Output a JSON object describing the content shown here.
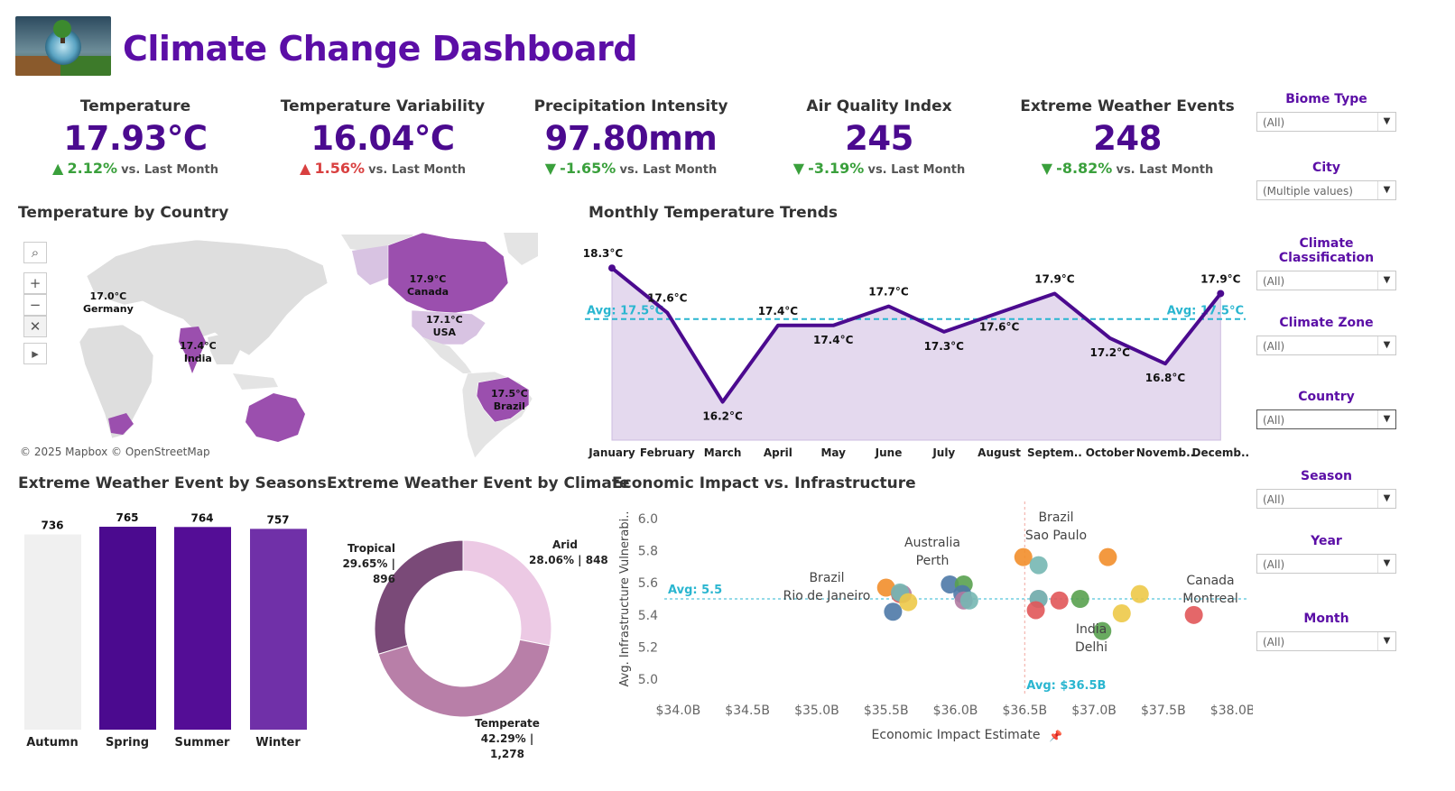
{
  "header": {
    "title": "Climate Change Dashboard",
    "logo_icon": "earth-globe-image"
  },
  "kpis": [
    {
      "label": "Temperature",
      "value": "17.93°C",
      "arrow": "▲",
      "delta": "2.12%",
      "direction": "up-good",
      "vs": "vs. Last Month"
    },
    {
      "label": "Temperature Variability",
      "value": "16.04°C",
      "arrow": "▲",
      "delta": "1.56%",
      "direction": "up-bad",
      "vs": "vs. Last Month"
    },
    {
      "label": "Precipitation Intensity",
      "value": "97.80mm",
      "arrow": "▼",
      "delta": "-1.65%",
      "direction": "down-good",
      "vs": "vs. Last Month"
    },
    {
      "label": "Air Quality Index",
      "value": "245",
      "arrow": "▼",
      "delta": "-3.19%",
      "direction": "down-good",
      "vs": "vs. Last Month"
    },
    {
      "label": "Extreme Weather Events",
      "value": "248",
      "arrow": "▼",
      "delta": "-8.82%",
      "direction": "down-good",
      "vs": "vs. Last Month"
    }
  ],
  "map": {
    "title": "Temperature by Country",
    "copyright": "© 2025 Mapbox © OpenStreetMap",
    "tools": [
      "search-icon",
      "zoom-in-icon",
      "zoom-out-icon",
      "pin-unpin-icon",
      "expand-arrow-icon"
    ],
    "labels": [
      {
        "value": "17.0°C",
        "country": "Germany"
      },
      {
        "value": "17.4°C",
        "country": "India"
      },
      {
        "value": "17.9°C",
        "country": "Canada"
      },
      {
        "value": "17.1°C",
        "country": "USA"
      },
      {
        "value": "17.5°C",
        "country": "Brazil"
      }
    ]
  },
  "line_title": "Monthly Temperature Trends",
  "bar_title": "Extreme Weather Event by Seasons",
  "donut_title": "Extreme Weather Event by Climate",
  "scatter_title": "Economic Impact vs. Infrastructure",
  "chart_data": [
    {
      "type": "area",
      "title": "Monthly Temperature Trends",
      "categories": [
        "January",
        "February",
        "March",
        "April",
        "May",
        "June",
        "July",
        "August",
        "Septem..",
        "October",
        "Novemb..",
        "Decemb.."
      ],
      "values": [
        18.3,
        17.6,
        16.2,
        17.4,
        17.4,
        17.7,
        17.3,
        17.6,
        17.9,
        17.2,
        16.8,
        17.9
      ],
      "value_labels": [
        "18.3°C",
        "17.6°C",
        "16.2°C",
        "17.4°C",
        "17.4°C",
        "17.7°C",
        "17.3°C",
        "17.6°C",
        "17.9°C",
        "17.2°C",
        "16.8°C",
        "17.9°C"
      ],
      "reference_line": {
        "value": 17.5,
        "label": "Avg: 17.5°C"
      },
      "color": "#4b0a8f",
      "fill": "#e4d9ee",
      "ref_color": "#2ab6d0"
    },
    {
      "type": "bar",
      "title": "Extreme Weather Event by Seasons",
      "categories": [
        "Autumn",
        "Spring",
        "Summer",
        "Winter"
      ],
      "values": [
        736,
        765,
        764,
        757
      ],
      "colors": [
        "#f0f0f0",
        "#4b0a8f",
        "#540d96",
        "#7030a8"
      ]
    },
    {
      "type": "pie",
      "title": "Extreme Weather Event by Climate",
      "slices": [
        {
          "name": "Arid",
          "value": 848,
          "percent": "28.06%",
          "label": "28.06% | 848",
          "color": "#ecc9e4"
        },
        {
          "name": "Temperate",
          "value": 1278,
          "percent": "42.29%",
          "label": "42.29% | 1,278",
          "color": "#b87fa8"
        },
        {
          "name": "Tropical",
          "value": 896,
          "percent": "29.65%",
          "label": "29.65% | 896",
          "color": "#7a4a78"
        }
      ]
    },
    {
      "type": "scatter",
      "title": "Economic Impact vs. Infrastructure",
      "xlabel": "Economic Impact Estimate",
      "ylabel": "Avg. Infrastructure Vulnerabi..",
      "x_ticks": [
        "$34.0B",
        "$34.5B",
        "$35.0B",
        "$35.5B",
        "$36.0B",
        "$36.5B",
        "$37.0B",
        "$37.5B",
        "$38.0B"
      ],
      "y_ticks": [
        "5.0",
        "5.2",
        "5.4",
        "5.6",
        "5.8",
        "6.0"
      ],
      "xlim": [
        33.9,
        38.1
      ],
      "ylim": [
        4.95,
        6.05
      ],
      "ref_x": {
        "value": 36.5,
        "label": "Avg: $36.5B"
      },
      "ref_y": {
        "value": 5.5,
        "label": "Avg: 5.5"
      },
      "points": [
        {
          "x": 35.5,
          "y": 5.57,
          "color": "#f28e2b"
        },
        {
          "x": 35.55,
          "y": 5.42,
          "color": "#4e79a7"
        },
        {
          "x": 35.6,
          "y": 5.53,
          "color": "#e15759"
        },
        {
          "x": 35.62,
          "y": 5.53,
          "color": "#b07aa1"
        },
        {
          "x": 35.6,
          "y": 5.54,
          "color": "#76b7b2"
        },
        {
          "x": 35.66,
          "y": 5.48,
          "color": "#edc948"
        },
        {
          "x": 35.96,
          "y": 5.59,
          "color": "#4e79a7"
        },
        {
          "x": 36.06,
          "y": 5.59,
          "color": "#59a14f"
        },
        {
          "x": 36.05,
          "y": 5.53,
          "color": "#4e79a7"
        },
        {
          "x": 36.06,
          "y": 5.49,
          "color": "#b07aa1"
        },
        {
          "x": 36.1,
          "y": 5.49,
          "color": "#76b7b2"
        },
        {
          "x": 36.49,
          "y": 5.76,
          "color": "#f28e2b"
        },
        {
          "x": 36.6,
          "y": 5.71,
          "color": "#76b7b2"
        },
        {
          "x": 36.6,
          "y": 5.5,
          "color": "#b07aa1"
        },
        {
          "x": 36.6,
          "y": 5.5,
          "color": "#76b7b2"
        },
        {
          "x": 36.58,
          "y": 5.43,
          "color": "#e15759"
        },
        {
          "x": 36.75,
          "y": 5.49,
          "color": "#e15759"
        },
        {
          "x": 36.9,
          "y": 5.5,
          "color": "#59a14f"
        },
        {
          "x": 37.1,
          "y": 5.76,
          "color": "#f28e2b"
        },
        {
          "x": 37.06,
          "y": 5.3,
          "color": "#59a14f"
        },
        {
          "x": 37.2,
          "y": 5.41,
          "color": "#edc948"
        },
        {
          "x": 37.33,
          "y": 5.53,
          "color": "#edc948"
        },
        {
          "x": 37.72,
          "y": 5.4,
          "color": "#e15759"
        }
      ],
      "annotations": [
        {
          "text": "Brazil",
          "text2": "Rio de Janeiro"
        },
        {
          "text": "Australia",
          "text2": "Perth"
        },
        {
          "text": "Brazil",
          "text2": "Sao Paulo"
        },
        {
          "text": "India",
          "text2": "Delhi"
        },
        {
          "text": "Canada",
          "text2": "Montreal"
        }
      ]
    }
  ],
  "filters": [
    {
      "label": "Biome Type",
      "value": "(All)"
    },
    {
      "label": "City",
      "value": "(Multiple values)"
    },
    {
      "label": "Climate Classification",
      "value": "(All)"
    },
    {
      "label": "Climate Zone",
      "value": "(All)"
    },
    {
      "label": "Country",
      "value": "(All)"
    },
    {
      "label": "Season",
      "value": "(All)"
    },
    {
      "label": "Year",
      "value": "(All)"
    },
    {
      "label": "Month",
      "value": "(All)"
    }
  ]
}
